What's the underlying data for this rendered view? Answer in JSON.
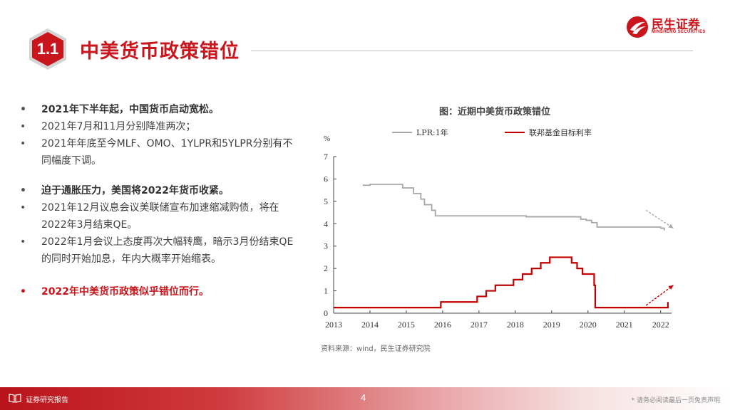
{
  "header": {
    "section_number": "1.1",
    "title": "中美货币政策错位"
  },
  "logo": {
    "name": "民生证券",
    "subtitle": "MINSHENG SECURITIES",
    "icon": "minsheng-logo-icon"
  },
  "bullets": [
    {
      "text": "2021年下半年起，中国货币启动宽松。",
      "style": "bold"
    },
    {
      "text": "2021年7月和11月分别降准两次；",
      "style": "normal"
    },
    {
      "text": "2021年年底至今MLF、OMO、1YLPR和5YLPR分别有不同幅度下调。",
      "style": "normal"
    },
    {
      "text": "迫于通胀压力，美国将2022年货币收紧。",
      "style": "bold"
    },
    {
      "text": "2021年12月议息会议美联储宣布加速缩减购债，将在2022年3月结束QE。",
      "style": "normal"
    },
    {
      "text": "2022年1月会议上态度再次大幅转鹰，暗示3月份结束QE的同时开始加息，年内大概率开始缩表。",
      "style": "normal"
    },
    {
      "text": "2022年中美货币政策似乎错位而行。",
      "style": "red"
    }
  ],
  "chart_title": "图：近期中美货币政策错位",
  "source": "资料来源：wind，民生证券研究院",
  "footer": {
    "label": "证券研究报告",
    "page": "4",
    "disclaimer": "* 请务必阅读最后一页免责声明"
  },
  "colors": {
    "brand_red": "#c9161d",
    "lpr_gray": "#a6a6a6",
    "fed_red": "#c00000"
  },
  "chart_data": {
    "type": "line",
    "title": "图：近期中美货币政策错位",
    "xlabel": "",
    "ylabel": "%",
    "xlim": [
      2013,
      2022.3
    ],
    "ylim": [
      0,
      7
    ],
    "x_ticks": [
      "2013",
      "2014",
      "2015",
      "2016",
      "2017",
      "2018",
      "2019",
      "2020",
      "2021",
      "2022"
    ],
    "y_ticks": [
      "0",
      "1",
      "2",
      "3",
      "4",
      "5",
      "6",
      "7"
    ],
    "legend_position": "top",
    "grid": false,
    "series": [
      {
        "name": "LPR:1年",
        "color": "#a6a6a6",
        "step": true,
        "points": [
          [
            2013.8,
            5.72
          ],
          [
            2014.0,
            5.76
          ],
          [
            2014.9,
            5.6
          ],
          [
            2015.2,
            5.35
          ],
          [
            2015.4,
            5.1
          ],
          [
            2015.5,
            4.85
          ],
          [
            2015.7,
            4.6
          ],
          [
            2015.8,
            4.35
          ],
          [
            2018.3,
            4.31
          ],
          [
            2019.7,
            4.31
          ],
          [
            2019.8,
            4.2
          ],
          [
            2019.95,
            4.15
          ],
          [
            2020.1,
            4.05
          ],
          [
            2020.25,
            3.85
          ],
          [
            2021.9,
            3.85
          ],
          [
            2022.0,
            3.8
          ],
          [
            2022.1,
            3.7
          ]
        ]
      },
      {
        "name": "联邦基金目标利率",
        "color": "#c00000",
        "step": true,
        "points": [
          [
            2013.0,
            0.25
          ],
          [
            2015.95,
            0.5
          ],
          [
            2016.95,
            0.75
          ],
          [
            2017.2,
            1.0
          ],
          [
            2017.45,
            1.25
          ],
          [
            2017.95,
            1.5
          ],
          [
            2018.2,
            1.75
          ],
          [
            2018.45,
            2.0
          ],
          [
            2018.7,
            2.25
          ],
          [
            2018.95,
            2.5
          ],
          [
            2019.55,
            2.25
          ],
          [
            2019.7,
            2.0
          ],
          [
            2019.85,
            1.75
          ],
          [
            2020.17,
            1.25
          ],
          [
            2020.2,
            0.25
          ],
          [
            2022.2,
            0.25
          ],
          [
            2022.2,
            0.5
          ]
        ]
      }
    ],
    "annotations": [
      {
        "type": "arrow",
        "color": "#a6a6a6",
        "from": [
          2021.6,
          4.6
        ],
        "to": [
          2022.35,
          3.8
        ]
      },
      {
        "type": "arrow",
        "color": "#c00000",
        "from": [
          2021.6,
          0.35
        ],
        "to": [
          2022.35,
          1.25
        ]
      }
    ]
  }
}
